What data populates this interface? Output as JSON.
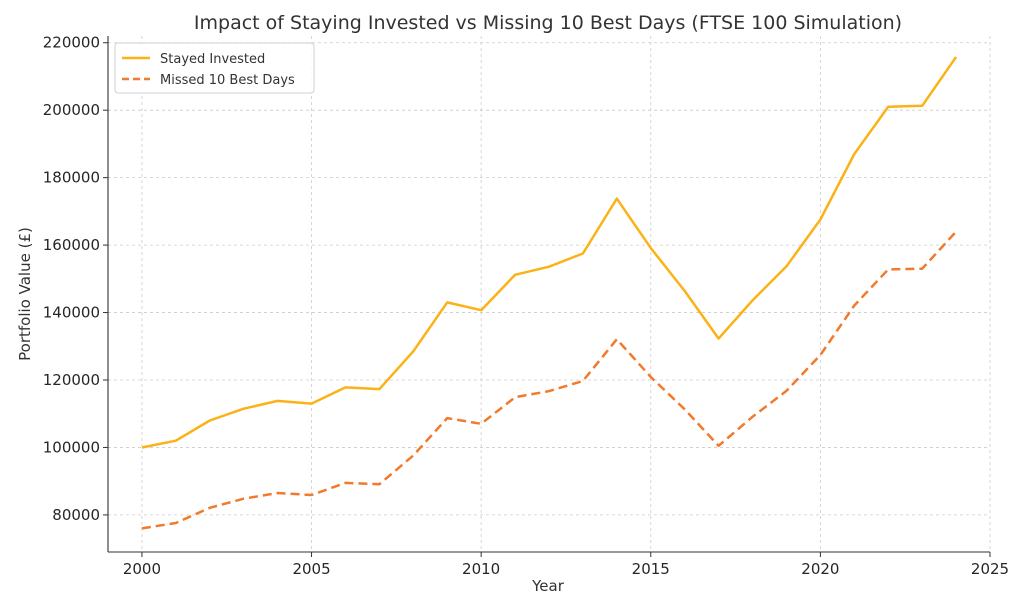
{
  "chart_data": {
    "type": "line",
    "title": "Impact of Staying Invested vs Missing 10 Best Days (FTSE 100 Simulation)",
    "xlabel": "Year",
    "ylabel": "Portfolio Value (£)",
    "xlim": [
      1999,
      2025
    ],
    "ylim": [
      69000,
      222000
    ],
    "xticks": [
      2000,
      2005,
      2010,
      2015,
      2020,
      2025
    ],
    "yticks": [
      80000,
      100000,
      120000,
      140000,
      160000,
      180000,
      200000,
      220000
    ],
    "grid": true,
    "legend_position": "top-left",
    "x": [
      2000,
      2001,
      2002,
      2003,
      2004,
      2005,
      2006,
      2007,
      2008,
      2009,
      2010,
      2011,
      2012,
      2013,
      2014,
      2015,
      2016,
      2017,
      2018,
      2019,
      2020,
      2021,
      2022,
      2023,
      2024
    ],
    "series": [
      {
        "name": "Stayed Invested",
        "color": "#fbb217",
        "style": "solid",
        "values": [
          100000,
          102000,
          108000,
          111500,
          113800,
          113000,
          117800,
          117300,
          128500,
          143000,
          140700,
          151200,
          153600,
          157500,
          173800,
          159100,
          146400,
          132300,
          143600,
          153700,
          167600,
          187000,
          201000,
          201300,
          215800
        ]
      },
      {
        "name": "Missed 10 Best Days",
        "color": "#f07a2d",
        "style": "dashed",
        "values": [
          76000,
          77600,
          82100,
          84800,
          86500,
          85900,
          89500,
          89100,
          97600,
          108700,
          107000,
          114900,
          116700,
          119700,
          132100,
          120900,
          111300,
          100500,
          109100,
          116800,
          127400,
          142100,
          152800,
          153000,
          164000
        ]
      }
    ]
  }
}
